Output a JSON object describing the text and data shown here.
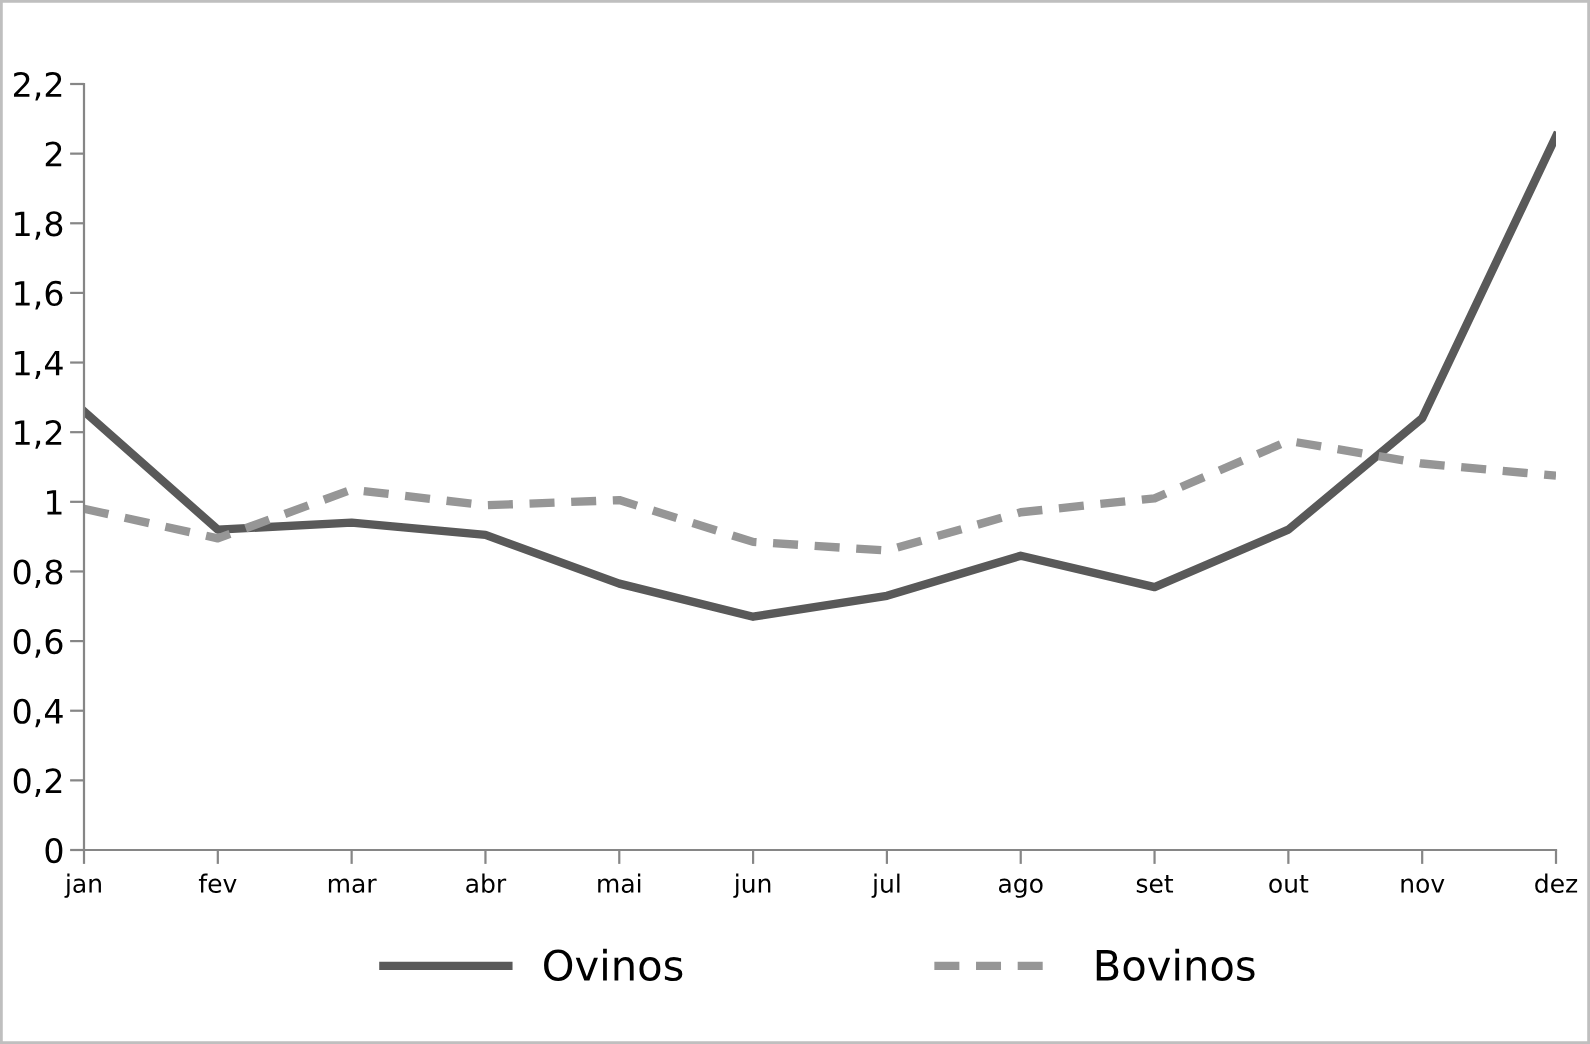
{
  "chart_data": {
    "type": "line",
    "categories": [
      "jan",
      "fev",
      "mar",
      "abr",
      "mai",
      "jun",
      "jul",
      "ago",
      "set",
      "out",
      "nov",
      "dez"
    ],
    "series": [
      {
        "name": "Ovinos",
        "color": "#595959",
        "line_style": "solid",
        "values": [
          1.26,
          0.92,
          0.94,
          0.905,
          0.765,
          0.67,
          0.73,
          0.845,
          0.755,
          0.92,
          1.24,
          2.05
        ]
      },
      {
        "name": "Bovinos",
        "color": "#969696",
        "line_style": "dashed",
        "values": [
          0.98,
          0.895,
          1.035,
          0.99,
          1.005,
          0.885,
          0.86,
          0.97,
          1.01,
          1.175,
          1.11,
          1.075
        ]
      }
    ],
    "ylim": [
      0,
      2.2
    ],
    "yticks": [
      0,
      {
        "value": 0.2,
        "label": "0,2"
      },
      {
        "value": 0.4,
        "label": "0,4"
      },
      {
        "value": 0.6,
        "label": "0,6"
      },
      {
        "value": 0.8,
        "label": "0,8"
      },
      1,
      {
        "value": 1.2,
        "label": "1,2"
      },
      {
        "value": 1.4,
        "label": "1,4"
      },
      {
        "value": 1.6,
        "label": "1,6"
      },
      {
        "value": 1.8,
        "label": "1,8"
      },
      2,
      {
        "value": 2.2,
        "label": "2,2"
      }
    ],
    "grid": false,
    "legend": "bottom",
    "marker": "none"
  }
}
